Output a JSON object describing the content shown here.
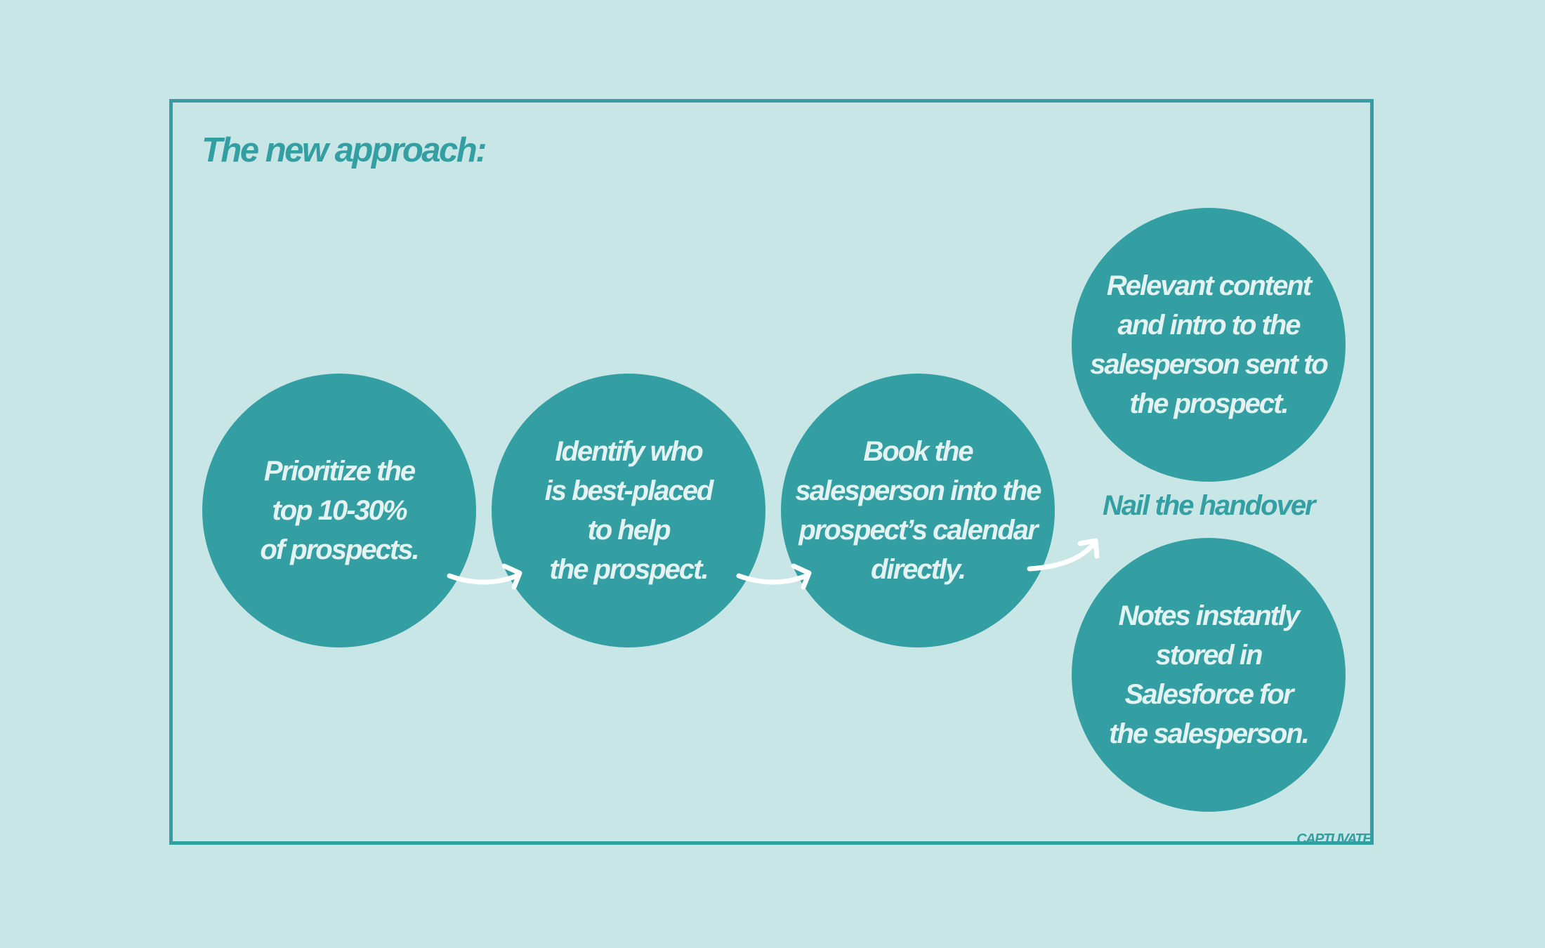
{
  "title": "The new approach:",
  "steps": [
    {
      "lines": [
        "Prioritize the",
        "top 10-30%",
        "of prospects."
      ]
    },
    {
      "lines": [
        "Identify who",
        "is best-placed",
        "to help",
        "the prospect."
      ]
    },
    {
      "lines": [
        "Book the",
        "salesperson into the",
        "prospect’s calendar",
        "directly."
      ]
    }
  ],
  "handover": {
    "label": "Nail the handover",
    "top": {
      "lines": [
        "Relevant content",
        "and intro to the",
        "salesperson sent to",
        "the prospect."
      ]
    },
    "bottom": {
      "lines": [
        "Notes instantly",
        "stored in",
        "Salesforce for",
        "the salesperson."
      ]
    }
  },
  "logo": "CAPTUVATE",
  "colors": {
    "background": "#c7e6e5",
    "accent": "#349fa2",
    "circle_text": "#e4f3f2",
    "arrow": "#ffffff"
  }
}
